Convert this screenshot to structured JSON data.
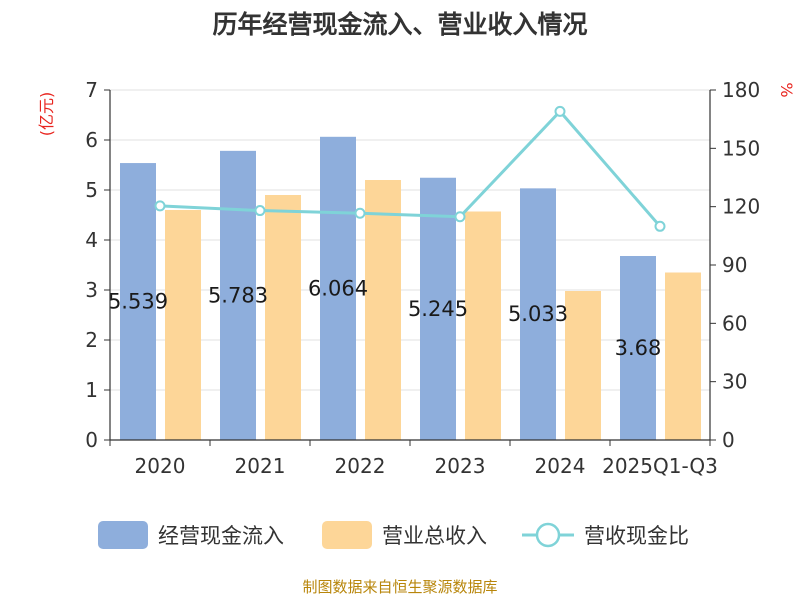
{
  "chart_data": {
    "type": "bar",
    "title": "历年经营现金流入、营业收入情况",
    "categories": [
      "2020",
      "2021",
      "2022",
      "2023",
      "2024",
      "2025Q1-Q3"
    ],
    "series": [
      {
        "name": "经营现金流入",
        "axis": "left",
        "color": "#8eaedc",
        "values": [
          5.539,
          5.783,
          6.064,
          5.245,
          5.033,
          3.68
        ]
      },
      {
        "name": "营业总收入",
        "axis": "left",
        "color": "#fdd698",
        "values": [
          4.6,
          4.9,
          5.2,
          4.57,
          2.98,
          3.35
        ]
      },
      {
        "name": "营收现金比",
        "axis": "right",
        "type": "line",
        "color": "#7fd3d8",
        "values": [
          120.4,
          118.0,
          116.6,
          114.8,
          169.0,
          109.9
        ]
      }
    ],
    "data_labels": [
      "5.539",
      "5.783",
      "6.064",
      "5.245",
      "5.033",
      "3.68"
    ],
    "ylabel_left": "(亿元)",
    "ylabel_right": "%",
    "ylim_left": [
      0,
      7
    ],
    "yticks_left": [
      "0",
      "1",
      "2",
      "3",
      "4",
      "5",
      "6",
      "7"
    ],
    "ylim_right": [
      0,
      180
    ],
    "yticks_right": [
      "0",
      "30",
      "60",
      "90",
      "120",
      "150",
      "180"
    ],
    "grid": true,
    "legend_position": "bottom"
  },
  "source_text": "制图数据来自恒生聚源数据库"
}
